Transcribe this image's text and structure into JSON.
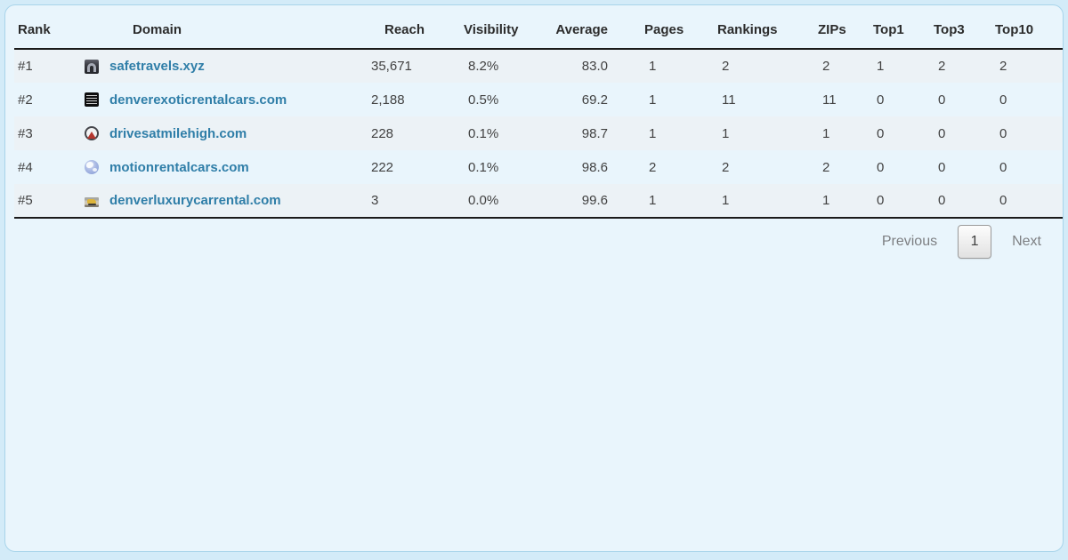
{
  "colors": {
    "page-bg": "#d3ebf8",
    "card-bg": "#e9f5fc",
    "card-border": "#a8d4ea",
    "row-stripe": "#ecf2f6",
    "header-text": "#2c2c2c",
    "cell-text": "#414141",
    "link": "#2f7ea8",
    "table-rule": "#1a1a1a",
    "muted-text": "#7d7f82"
  },
  "table": {
    "columns": [
      {
        "key": "rank",
        "label": "Rank"
      },
      {
        "key": "domain",
        "label": "Domain"
      },
      {
        "key": "reach",
        "label": "Reach"
      },
      {
        "key": "visibility",
        "label": "Visibility"
      },
      {
        "key": "average",
        "label": "Average"
      },
      {
        "key": "pages",
        "label": "Pages"
      },
      {
        "key": "rankings",
        "label": "Rankings"
      },
      {
        "key": "zips",
        "label": "ZIPs"
      },
      {
        "key": "top1",
        "label": "Top1"
      },
      {
        "key": "top3",
        "label": "Top3"
      },
      {
        "key": "top10",
        "label": "Top10"
      }
    ],
    "rows": [
      {
        "rank": "#1",
        "domain": "safetravels.xyz",
        "favicon": "gate-photo-favicon",
        "reach": "35,671",
        "visibility": "8.2%",
        "average": "83.0",
        "pages": "1",
        "rankings": "2",
        "zips": "2",
        "top1": "1",
        "top3": "2",
        "top10": "2"
      },
      {
        "rank": "#2",
        "domain": "denverexoticrentalcars.com",
        "favicon": "text-lines-favicon",
        "reach": "2,188",
        "visibility": "0.5%",
        "average": "69.2",
        "pages": "1",
        "rankings": "11",
        "zips": "11",
        "top1": "0",
        "top3": "0",
        "top10": "0"
      },
      {
        "rank": "#3",
        "domain": "drivesatmilehigh.com",
        "favicon": "mountain-badge-favicon",
        "reach": "228",
        "visibility": "0.1%",
        "average": "98.7",
        "pages": "1",
        "rankings": "1",
        "zips": "1",
        "top1": "0",
        "top3": "0",
        "top10": "0"
      },
      {
        "rank": "#4",
        "domain": "motionrentalcars.com",
        "favicon": "globe-favicon",
        "reach": "222",
        "visibility": "0.1%",
        "average": "98.6",
        "pages": "2",
        "rankings": "2",
        "zips": "2",
        "top1": "0",
        "top3": "0",
        "top10": "0"
      },
      {
        "rank": "#5",
        "domain": "denverluxurycarrental.com",
        "favicon": "yellow-car-photo-favicon",
        "reach": "3",
        "visibility": "0.0%",
        "average": "99.6",
        "pages": "1",
        "rankings": "1",
        "zips": "1",
        "top1": "0",
        "top3": "0",
        "top10": "0"
      }
    ]
  },
  "pagination": {
    "previous_label": "Previous",
    "current_page": "1",
    "next_label": "Next"
  }
}
